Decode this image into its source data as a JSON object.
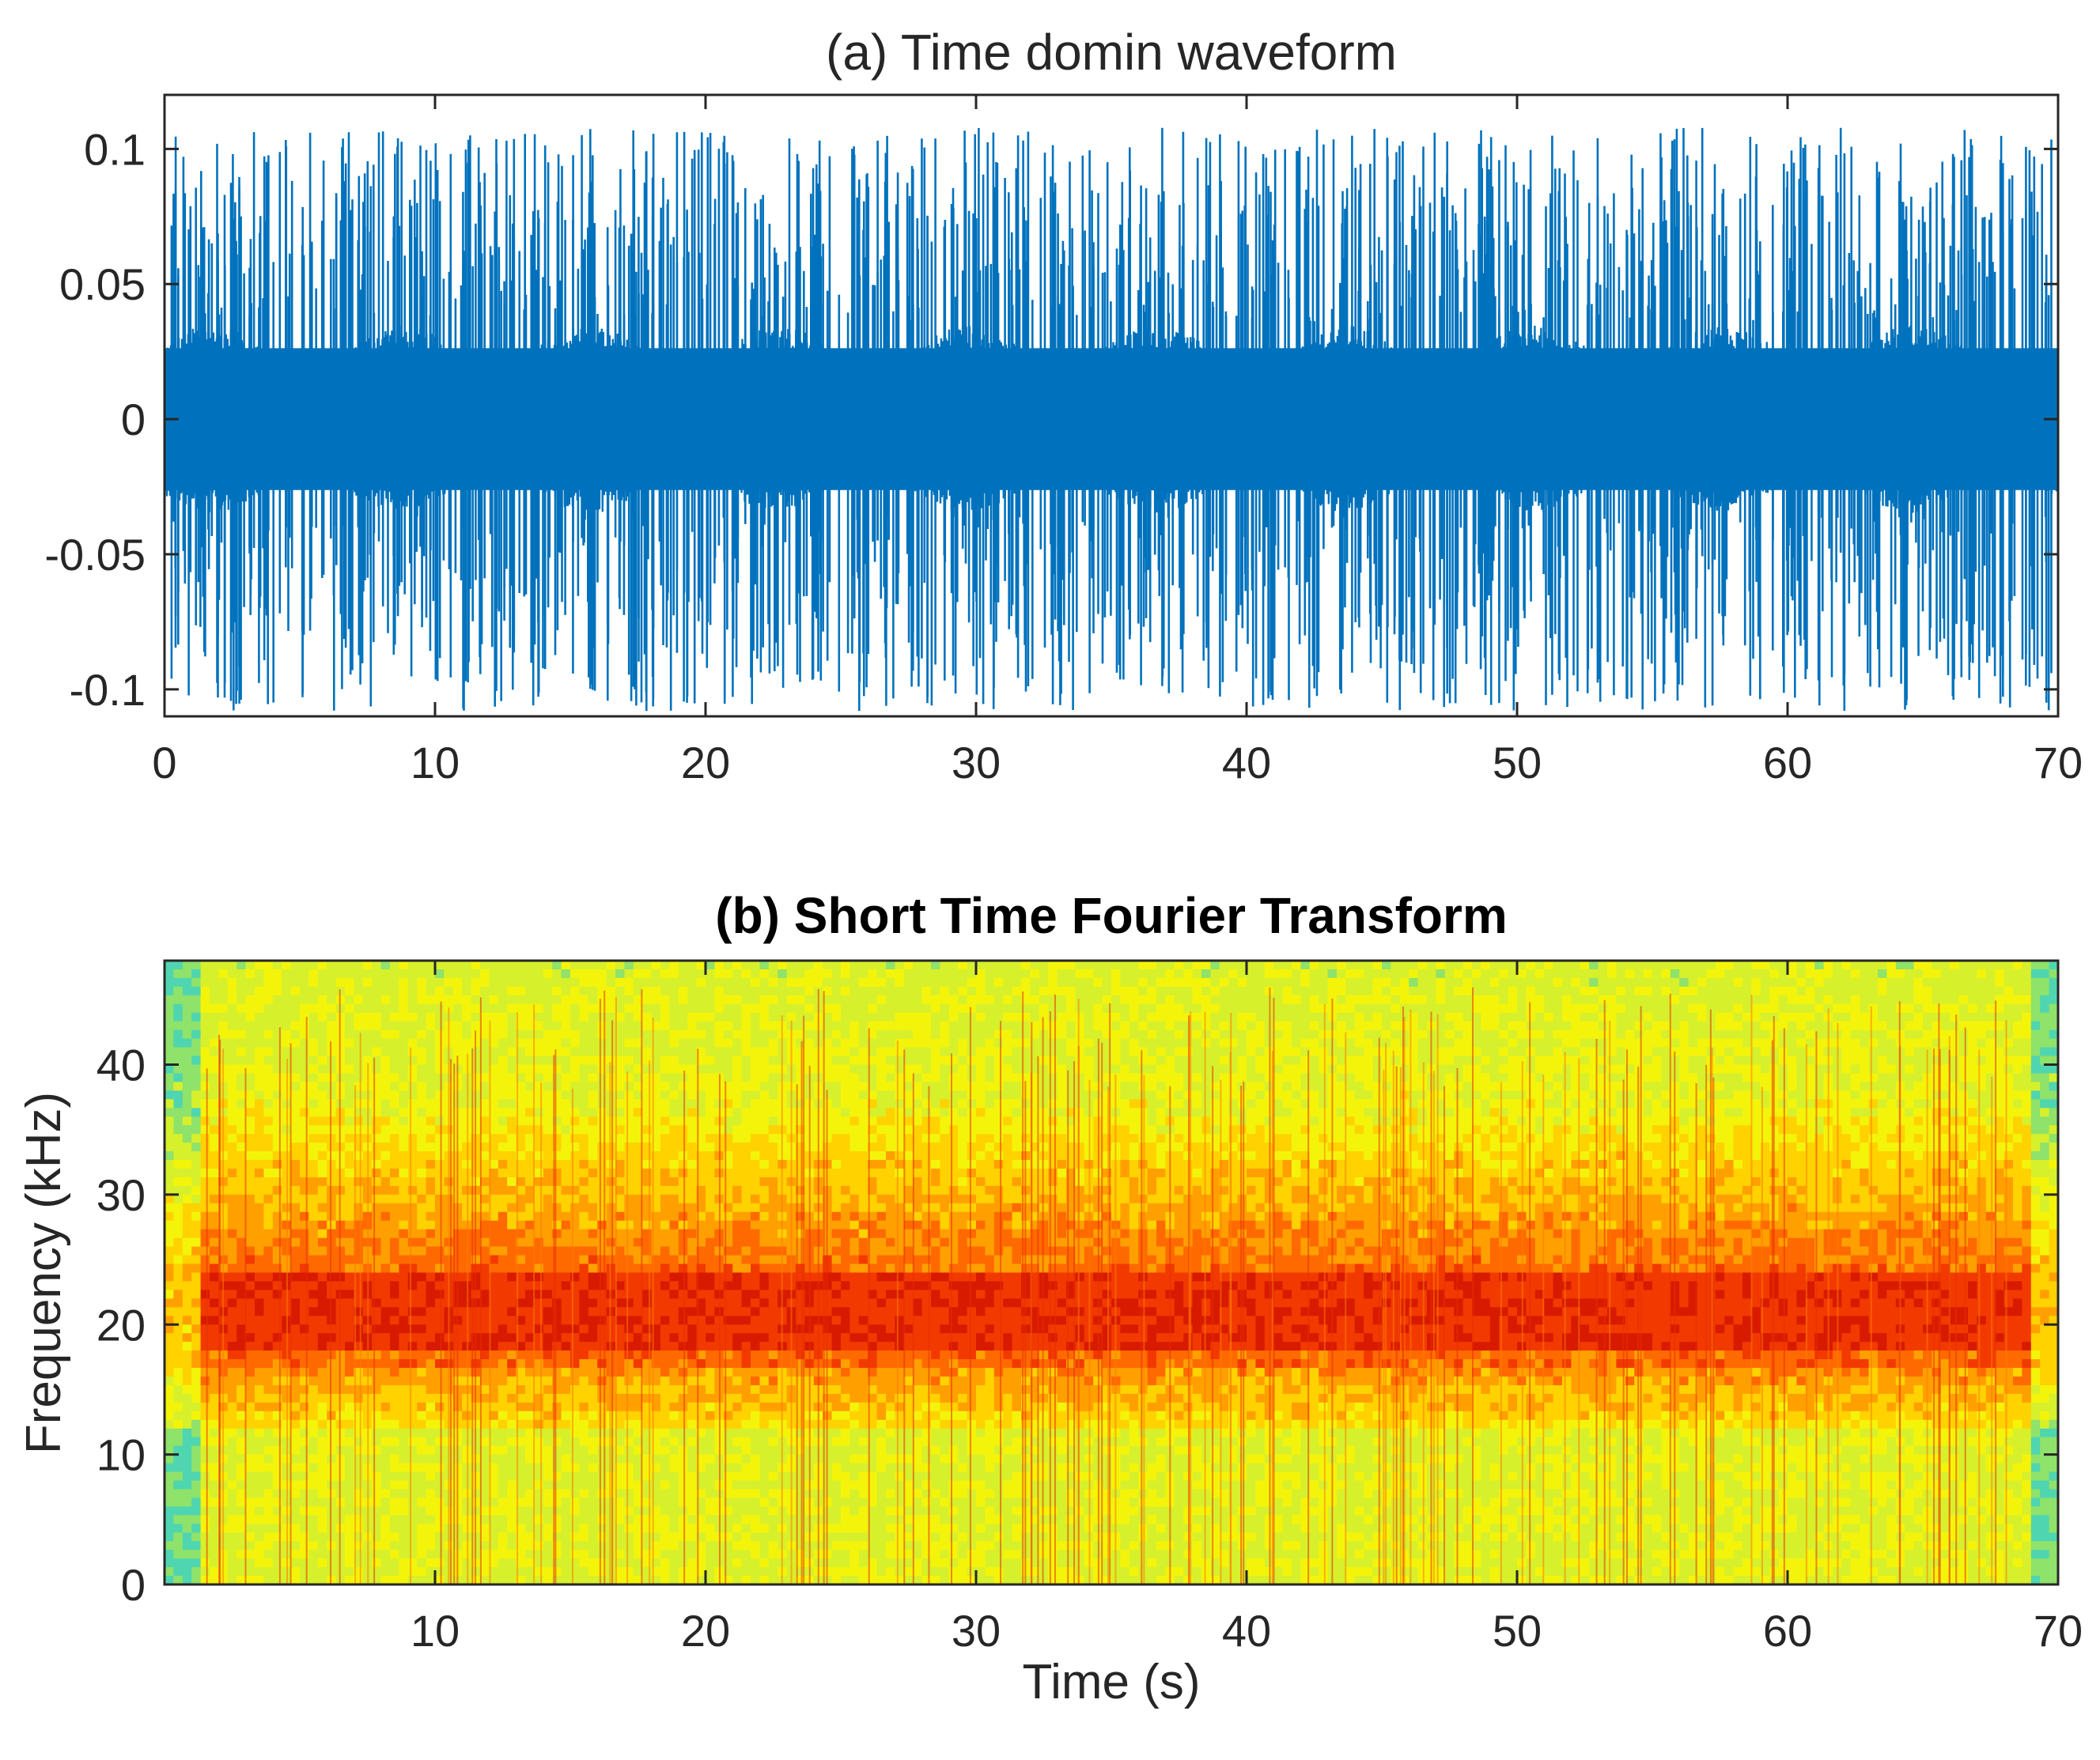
{
  "chart_data": [
    {
      "type": "line",
      "title": "(a) Time domin waveform",
      "xlabel": "",
      "ylabel": "",
      "xlim": [
        0,
        70
      ],
      "ylim": [
        -0.11,
        0.12
      ],
      "x_ticks": [
        "0",
        "10",
        "20",
        "30",
        "40",
        "50",
        "60",
        "70"
      ],
      "y_ticks": [
        "0.1",
        "0.05",
        "0",
        "-0.05",
        "-0.1"
      ],
      "x_tick_values": [
        0,
        10,
        20,
        30,
        40,
        50,
        60,
        70
      ],
      "y_tick_values": [
        0.1,
        0.05,
        0,
        -0.05,
        -0.1
      ],
      "grid": false,
      "series": [
        {
          "color": "#0072BD",
          "description_values": {
            "dense_band_half_width": 0.035,
            "typical_spike_amplitude": 0.08,
            "max_spike_amplitude": 0.12
          }
        }
      ]
    },
    {
      "type": "heatmap",
      "title": "(b) Short Time Fourier Transform",
      "xlabel": "Time (s)",
      "ylabel": "Frequency (kHz)",
      "xlim": [
        0,
        70
      ],
      "ylim": [
        0,
        48
      ],
      "x_ticks": [
        "10",
        "20",
        "30",
        "40",
        "50",
        "60",
        "70"
      ],
      "y_ticks": [
        "40",
        "30",
        "20",
        "10",
        "0"
      ],
      "x_tick_values": [
        10,
        20,
        30,
        40,
        50,
        60,
        70
      ],
      "y_tick_values": [
        40,
        30,
        20,
        10,
        0
      ],
      "grid": false,
      "colormap": "jet-like (cyan-green-yellow-orange-red)",
      "bands": [
        {
          "freq_from": 0,
          "freq_to": 12,
          "intensity": "low"
        },
        {
          "freq_from": 12,
          "freq_to": 17,
          "intensity": "medium"
        },
        {
          "freq_from": 17,
          "freq_to": 24,
          "intensity": "high"
        },
        {
          "freq_from": 24,
          "freq_to": 36,
          "intensity": "medium-high"
        },
        {
          "freq_from": 36,
          "freq_to": 48,
          "intensity": "low"
        }
      ],
      "strong_band_khz": [
        18,
        24
      ],
      "strong_band_time_s": [
        1.3,
        69
      ]
    }
  ]
}
